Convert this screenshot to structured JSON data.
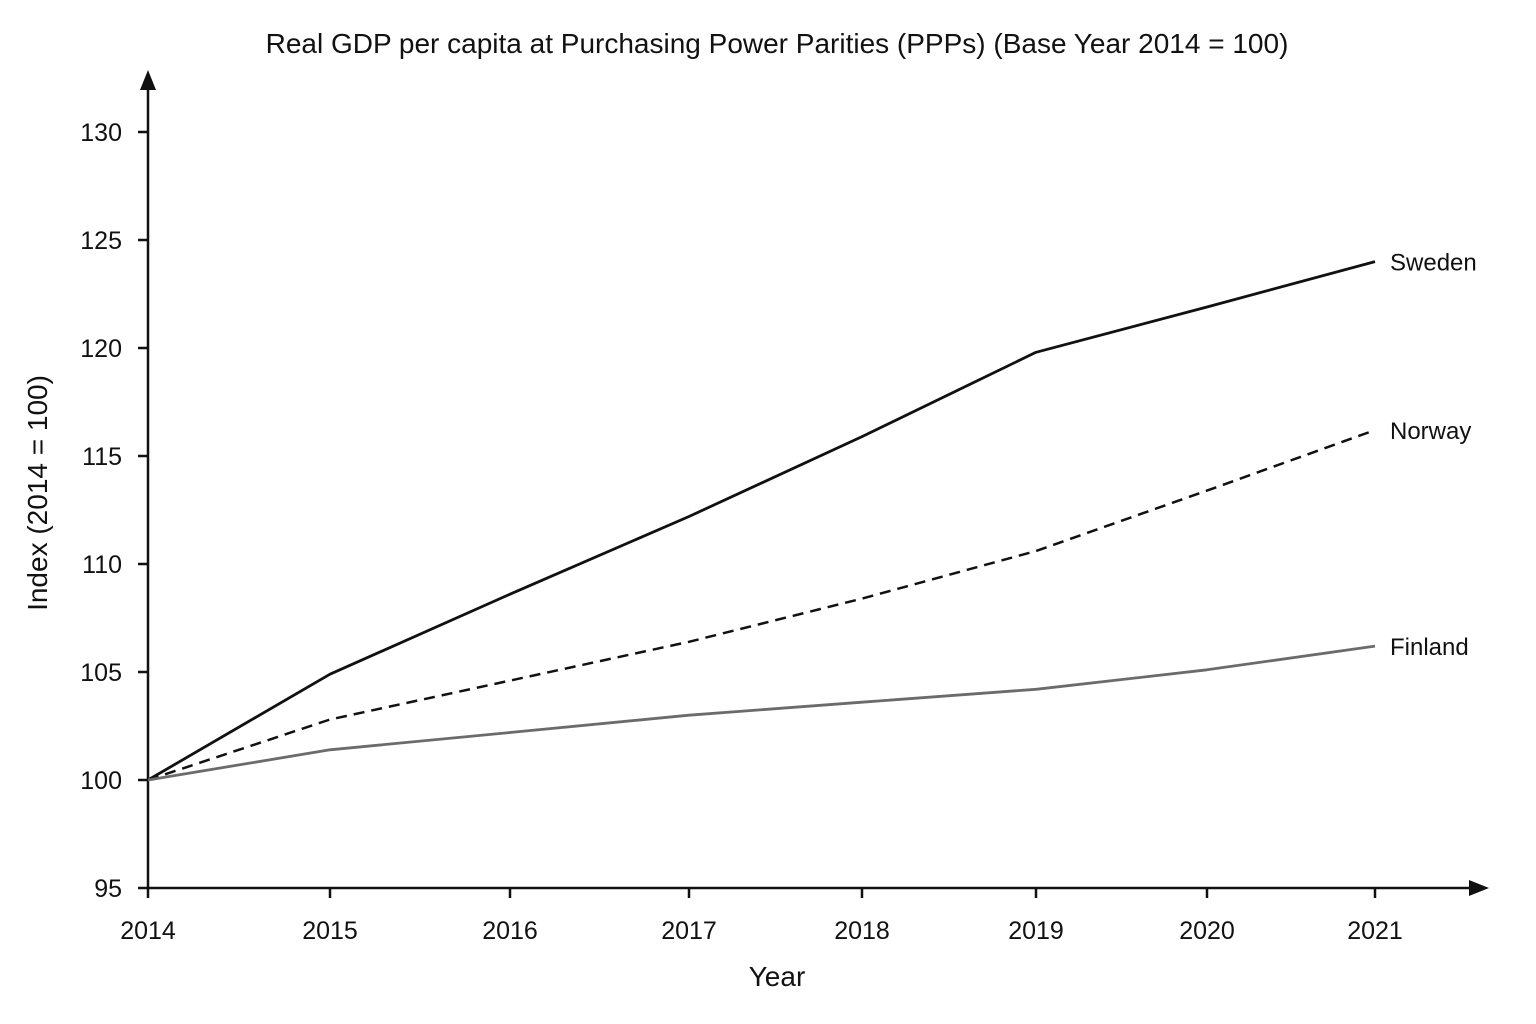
{
  "chart_data": {
    "type": "line",
    "title": "Real GDP per capita at Purchasing Power Parities (PPPs) (Base Year 2014 = 100)",
    "xlabel": "Year",
    "ylabel": "Index (2014 = 100)",
    "x": [
      "2014",
      "2015",
      "2016",
      "2017",
      "2018",
      "2019",
      "2020",
      "2021"
    ],
    "x_ticks": [
      "2014",
      "2015",
      "2016",
      "2017",
      "2018",
      "2019",
      "2020",
      "2021"
    ],
    "y_ticks": [
      "95",
      "100",
      "105",
      "110",
      "115",
      "120",
      "125",
      "130"
    ],
    "ylim": [
      95,
      130
    ],
    "grid": false,
    "legend": "inline labels at line ends",
    "series": [
      {
        "name": "Sweden",
        "values": [
          100,
          104.9,
          108.6,
          112.2,
          115.9,
          119.8,
          121.9,
          124.0
        ],
        "color": "#111111",
        "style": "solid"
      },
      {
        "name": "Norway",
        "values": [
          100,
          102.8,
          104.6,
          106.4,
          108.4,
          110.6,
          113.4,
          116.2
        ],
        "color": "#111111",
        "style": "dashed"
      },
      {
        "name": "Finland",
        "values": [
          100,
          101.4,
          102.2,
          103.0,
          103.6,
          104.2,
          105.1,
          106.2
        ],
        "color": "#6b6b6b",
        "style": "solid"
      }
    ]
  }
}
